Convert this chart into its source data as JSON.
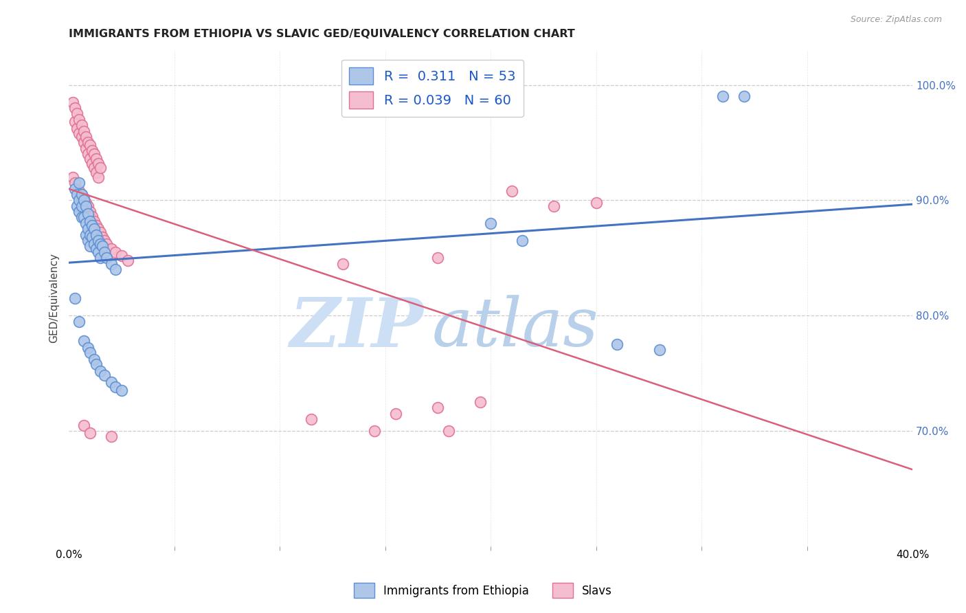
{
  "title": "IMMIGRANTS FROM ETHIOPIA VS SLAVIC GED/EQUIVALENCY CORRELATION CHART",
  "source": "Source: ZipAtlas.com",
  "ylabel": "GED/Equivalency",
  "ylabel_right_ticks": [
    "100.0%",
    "90.0%",
    "80.0%",
    "70.0%"
  ],
  "ylabel_right_vals": [
    1.0,
    0.9,
    0.8,
    0.7
  ],
  "x_min": 0.0,
  "x_max": 0.4,
  "y_min": 0.6,
  "y_max": 1.03,
  "blue_R": 0.311,
  "blue_N": 53,
  "pink_R": 0.039,
  "pink_N": 60,
  "legend_label_blue": "Immigrants from Ethiopia",
  "legend_label_pink": "Slavs",
  "blue_color": "#aec6e8",
  "blue_edge_color": "#5b8fd4",
  "pink_color": "#f5bdd0",
  "pink_edge_color": "#e07090",
  "blue_line_color": "#4472c4",
  "pink_line_color": "#d9607a",
  "blue_scatter": [
    [
      0.003,
      0.91
    ],
    [
      0.004,
      0.905
    ],
    [
      0.004,
      0.895
    ],
    [
      0.005,
      0.915
    ],
    [
      0.005,
      0.9
    ],
    [
      0.005,
      0.89
    ],
    [
      0.006,
      0.905
    ],
    [
      0.006,
      0.895
    ],
    [
      0.006,
      0.885
    ],
    [
      0.007,
      0.9
    ],
    [
      0.007,
      0.885
    ],
    [
      0.008,
      0.895
    ],
    [
      0.008,
      0.88
    ],
    [
      0.008,
      0.87
    ],
    [
      0.009,
      0.888
    ],
    [
      0.009,
      0.875
    ],
    [
      0.009,
      0.865
    ],
    [
      0.01,
      0.882
    ],
    [
      0.01,
      0.87
    ],
    [
      0.01,
      0.86
    ],
    [
      0.011,
      0.878
    ],
    [
      0.011,
      0.868
    ],
    [
      0.012,
      0.875
    ],
    [
      0.012,
      0.862
    ],
    [
      0.013,
      0.87
    ],
    [
      0.013,
      0.858
    ],
    [
      0.014,
      0.865
    ],
    [
      0.014,
      0.855
    ],
    [
      0.015,
      0.862
    ],
    [
      0.015,
      0.85
    ],
    [
      0.016,
      0.86
    ],
    [
      0.017,
      0.855
    ],
    [
      0.018,
      0.85
    ],
    [
      0.02,
      0.845
    ],
    [
      0.022,
      0.84
    ],
    [
      0.003,
      0.815
    ],
    [
      0.005,
      0.795
    ],
    [
      0.007,
      0.778
    ],
    [
      0.009,
      0.772
    ],
    [
      0.01,
      0.768
    ],
    [
      0.012,
      0.762
    ],
    [
      0.013,
      0.758
    ],
    [
      0.015,
      0.752
    ],
    [
      0.017,
      0.748
    ],
    [
      0.02,
      0.742
    ],
    [
      0.022,
      0.738
    ],
    [
      0.025,
      0.735
    ],
    [
      0.2,
      0.88
    ],
    [
      0.215,
      0.865
    ],
    [
      0.26,
      0.775
    ],
    [
      0.28,
      0.77
    ],
    [
      0.31,
      0.99
    ],
    [
      0.32,
      0.99
    ]
  ],
  "pink_scatter": [
    [
      0.002,
      0.985
    ],
    [
      0.003,
      0.98
    ],
    [
      0.003,
      0.968
    ],
    [
      0.004,
      0.975
    ],
    [
      0.004,
      0.962
    ],
    [
      0.005,
      0.97
    ],
    [
      0.005,
      0.958
    ],
    [
      0.006,
      0.965
    ],
    [
      0.006,
      0.955
    ],
    [
      0.007,
      0.96
    ],
    [
      0.007,
      0.95
    ],
    [
      0.008,
      0.955
    ],
    [
      0.008,
      0.945
    ],
    [
      0.009,
      0.95
    ],
    [
      0.009,
      0.94
    ],
    [
      0.01,
      0.948
    ],
    [
      0.01,
      0.936
    ],
    [
      0.011,
      0.943
    ],
    [
      0.011,
      0.932
    ],
    [
      0.012,
      0.94
    ],
    [
      0.012,
      0.928
    ],
    [
      0.013,
      0.936
    ],
    [
      0.013,
      0.924
    ],
    [
      0.014,
      0.932
    ],
    [
      0.014,
      0.92
    ],
    [
      0.015,
      0.928
    ],
    [
      0.002,
      0.92
    ],
    [
      0.003,
      0.915
    ],
    [
      0.005,
      0.908
    ],
    [
      0.006,
      0.905
    ],
    [
      0.007,
      0.902
    ],
    [
      0.008,
      0.898
    ],
    [
      0.009,
      0.895
    ],
    [
      0.01,
      0.89
    ],
    [
      0.011,
      0.886
    ],
    [
      0.012,
      0.882
    ],
    [
      0.013,
      0.878
    ],
    [
      0.014,
      0.875
    ],
    [
      0.015,
      0.872
    ],
    [
      0.016,
      0.868
    ],
    [
      0.017,
      0.865
    ],
    [
      0.018,
      0.862
    ],
    [
      0.02,
      0.858
    ],
    [
      0.022,
      0.855
    ],
    [
      0.025,
      0.852
    ],
    [
      0.028,
      0.848
    ],
    [
      0.13,
      0.845
    ],
    [
      0.175,
      0.85
    ],
    [
      0.21,
      0.908
    ],
    [
      0.23,
      0.895
    ],
    [
      0.25,
      0.898
    ],
    [
      0.007,
      0.705
    ],
    [
      0.01,
      0.698
    ],
    [
      0.02,
      0.695
    ],
    [
      0.115,
      0.71
    ],
    [
      0.155,
      0.715
    ],
    [
      0.175,
      0.72
    ],
    [
      0.195,
      0.725
    ],
    [
      0.145,
      0.7
    ],
    [
      0.18,
      0.7
    ]
  ],
  "grid_color": "#cccccc",
  "background_color": "#ffffff",
  "watermark_zip": "ZIP",
  "watermark_atlas": "atlas",
  "watermark_color_zip": "#ccdff5",
  "watermark_color_atlas": "#b8d0ea"
}
